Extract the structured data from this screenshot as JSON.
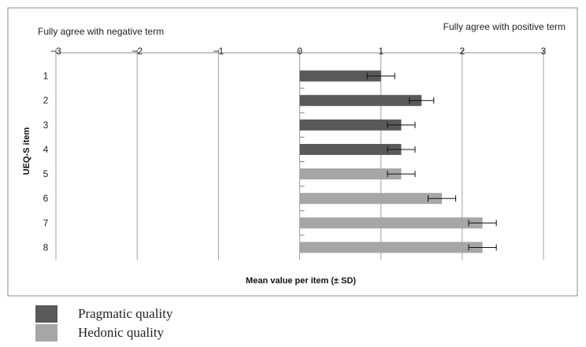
{
  "chart_data": {
    "type": "bar",
    "orientation": "horizontal",
    "title": "",
    "xlabel": "Mean value per item (± SD)",
    "ylabel": "UEQ-S item",
    "xlim": [
      -3,
      3
    ],
    "x_ticks": [
      "−3",
      "−2",
      "−1",
      "0",
      "1",
      "2",
      "3"
    ],
    "x_tick_values": [
      -3,
      -2,
      -1,
      0,
      1,
      2,
      3
    ],
    "categories": [
      "1",
      "2",
      "3",
      "4",
      "5",
      "6",
      "7",
      "8"
    ],
    "values": [
      1.0,
      1.5,
      1.25,
      1.25,
      1.25,
      1.75,
      2.25,
      2.25
    ],
    "errors": [
      0.17,
      0.15,
      0.17,
      0.17,
      0.17,
      0.17,
      0.17,
      0.17
    ],
    "groups": [
      "pragmatic",
      "pragmatic",
      "pragmatic",
      "pragmatic",
      "hedonic",
      "hedonic",
      "hedonic",
      "hedonic"
    ],
    "annotations": {
      "left": "Fully agree with negative term",
      "right": "Fully agree with positive term"
    },
    "legend": [
      {
        "key": "pragmatic",
        "label": "Pragmatic quality",
        "color": "#595959"
      },
      {
        "key": "hedonic",
        "label": "Hedonic quality",
        "color": "#a6a6a6"
      }
    ],
    "legend_position": "bottom-left",
    "grid": "vertical"
  }
}
